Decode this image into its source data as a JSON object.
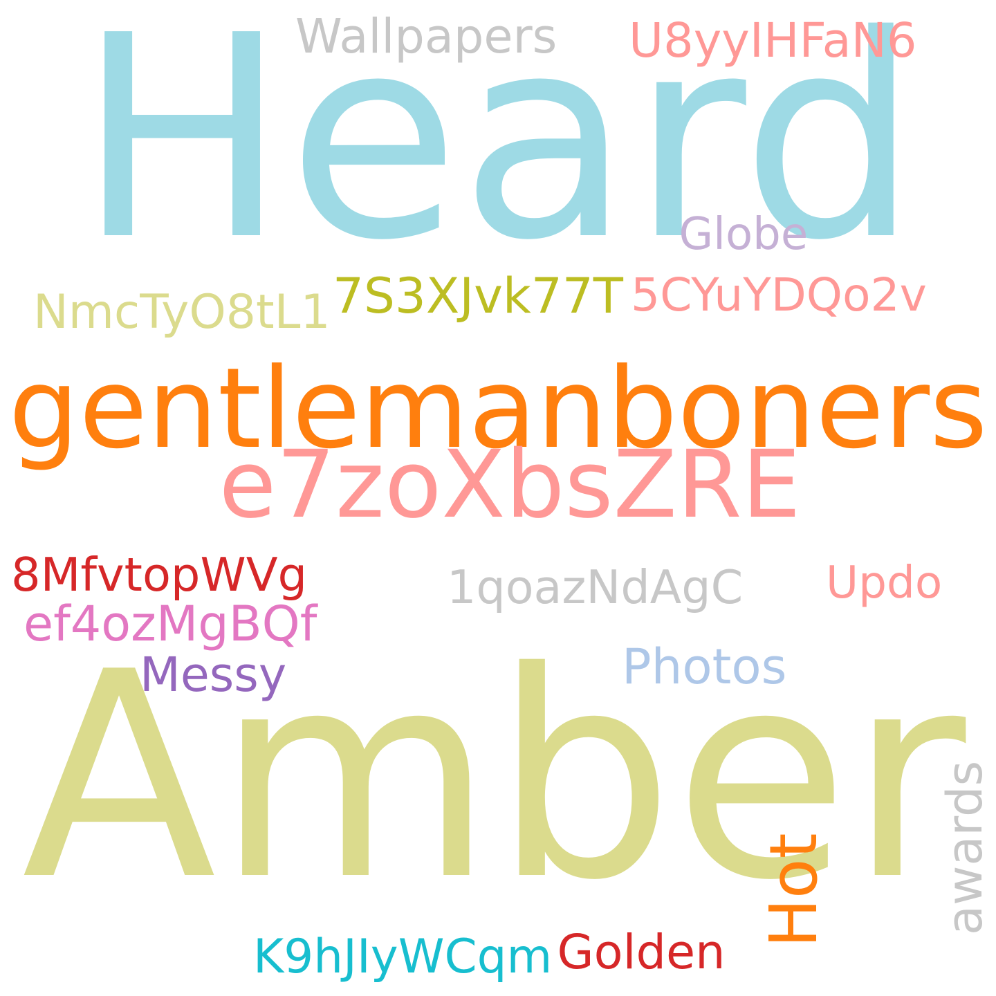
{
  "cloud": {
    "background": "#ffffff",
    "words": [
      {
        "text": "Heard",
        "color": "#9edae5",
        "orientation": "horizontal"
      },
      {
        "text": "Amber",
        "color": "#dbdb8d",
        "orientation": "horizontal"
      },
      {
        "text": "gentlemanboners",
        "color": "#ff7f0e",
        "orientation": "horizontal"
      },
      {
        "text": "e7zoXbsZRE",
        "color": "#ff9896",
        "orientation": "horizontal"
      },
      {
        "text": "Wallpapers",
        "color": "#c7c7c7",
        "orientation": "horizontal"
      },
      {
        "text": "U8yyIHFaN6",
        "color": "#ff9896",
        "orientation": "horizontal"
      },
      {
        "text": "Globe",
        "color": "#c5b0d5",
        "orientation": "horizontal"
      },
      {
        "text": "NmcTyO8tL1",
        "color": "#dbdb8d",
        "orientation": "horizontal"
      },
      {
        "text": "7S3XJvk77T",
        "color": "#bcbd22",
        "orientation": "horizontal"
      },
      {
        "text": "5CYuYDQo2v",
        "color": "#ff9896",
        "orientation": "horizontal"
      },
      {
        "text": "8MfvtopWVg",
        "color": "#d62728",
        "orientation": "horizontal"
      },
      {
        "text": "1qoazNdAgC",
        "color": "#c7c7c7",
        "orientation": "horizontal"
      },
      {
        "text": "Updo",
        "color": "#ff9896",
        "orientation": "horizontal"
      },
      {
        "text": "ef4ozMgBQf",
        "color": "#e377c2",
        "orientation": "horizontal"
      },
      {
        "text": "Messy",
        "color": "#9467bd",
        "orientation": "horizontal"
      },
      {
        "text": "Photos",
        "color": "#aec7e8",
        "orientation": "horizontal"
      },
      {
        "text": "Hot",
        "color": "#ff7f0e",
        "orientation": "vertical"
      },
      {
        "text": "awards",
        "color": "#c7c7c7",
        "orientation": "vertical"
      },
      {
        "text": "K9hJIyWCqm",
        "color": "#17becf",
        "orientation": "horizontal"
      },
      {
        "text": "Golden",
        "color": "#d62728",
        "orientation": "horizontal"
      }
    ]
  }
}
